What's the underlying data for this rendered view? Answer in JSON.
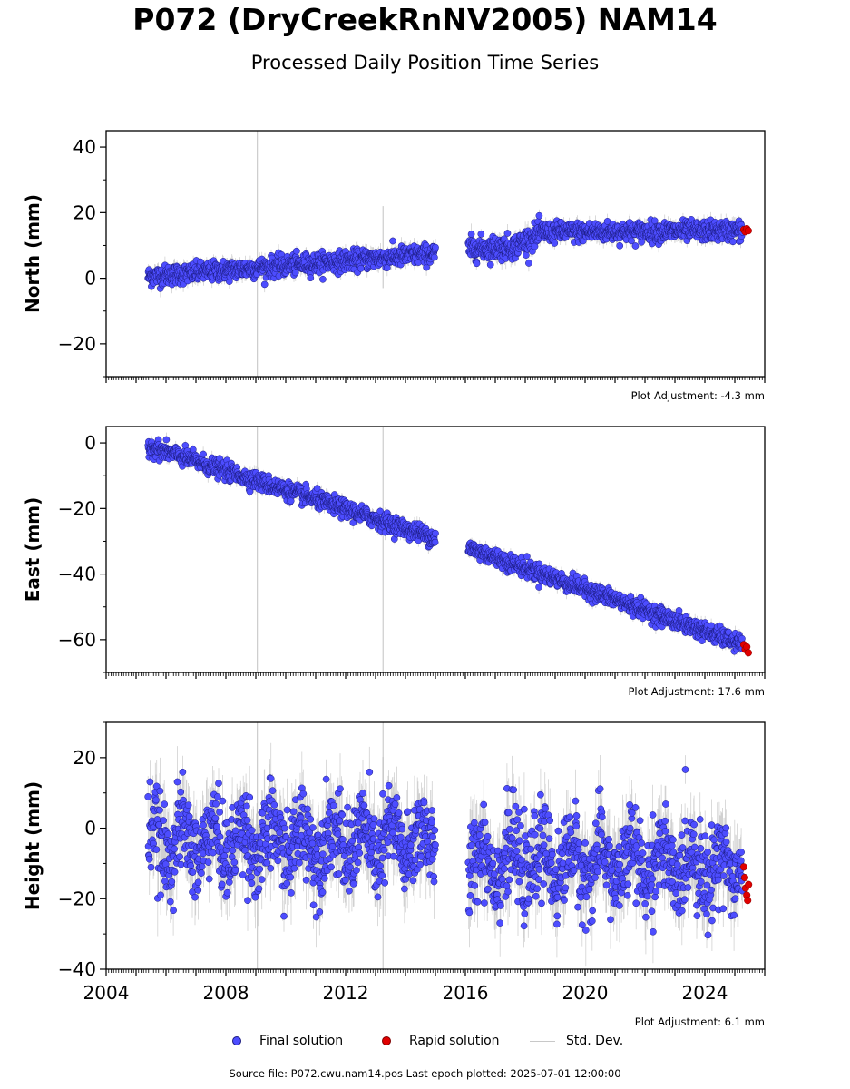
{
  "header": {
    "title": "P072 (DryCreekRnNV2005) NAM14",
    "subtitle": "Processed Daily Position Time Series"
  },
  "legend": {
    "final_label": "Final solution",
    "rapid_label": "Rapid solution",
    "std_label": "Std. Dev."
  },
  "footer": {
    "source": "Source file: P072.cwu.nam14.pos  Last epoch plotted: 2025-07-01 12:00:00"
  },
  "colors": {
    "final_fill": "#4d4dff",
    "final_edge": "#1a1a80",
    "rapid_fill": "#e00000",
    "std_dev": "#c8c8c8"
  },
  "chart_data": [
    {
      "type": "scatter",
      "ylabel": "North (mm)",
      "ylim": [
        -30,
        45
      ],
      "yticks": [
        40,
        20,
        0,
        -20
      ],
      "ytick_labels": [
        "40",
        "20",
        "0",
        "−20"
      ],
      "xlim": [
        2004,
        2026
      ],
      "adjustment": "Plot Adjustment: -4.3 mm",
      "break_lines": [
        2009.05
      ],
      "outlier_spikes": [
        [
          2013.25,
          -3,
          22
        ]
      ],
      "segments": [
        {
          "x0": 2005.4,
          "x1": 2015.0,
          "y0": 0.5,
          "y1": 7.5,
          "noise": 1.5
        },
        {
          "x0": 2016.1,
          "x1": 2017.6,
          "y0": 9.0,
          "y1": 9.5,
          "noise": 1.8
        },
        {
          "x0": 2017.6,
          "x1": 2018.6,
          "y0": 9.5,
          "y1": 14.0,
          "noise": 1.8
        },
        {
          "x0": 2018.6,
          "x1": 2025.25,
          "y0": 14.0,
          "y1": 14.5,
          "noise": 1.5
        }
      ],
      "rapid": [
        [
          2025.3,
          14.8
        ],
        [
          2025.35,
          14.2
        ],
        [
          2025.4,
          15.1
        ],
        [
          2025.45,
          14.5
        ]
      ]
    },
    {
      "type": "scatter",
      "ylabel": "East (mm)",
      "ylim": [
        -70,
        5
      ],
      "yticks": [
        0,
        -20,
        -40,
        -60
      ],
      "ytick_labels": [
        "0",
        "−20",
        "−40",
        "−60"
      ],
      "xlim": [
        2004,
        2026
      ],
      "adjustment": "Plot Adjustment: 17.6 mm",
      "break_lines": [
        2009.05,
        2013.25
      ],
      "outlier_spikes": [],
      "segments": [
        {
          "x0": 2005.4,
          "x1": 2015.0,
          "y0": -1.0,
          "y1": -29.0,
          "noise": 1.3
        },
        {
          "x0": 2016.1,
          "x1": 2025.25,
          "y0": -32.0,
          "y1": -61.5,
          "noise": 1.3
        }
      ],
      "rapid": [
        [
          2025.3,
          -61.5
        ],
        [
          2025.35,
          -63.0
        ],
        [
          2025.4,
          -62.2
        ],
        [
          2025.45,
          -64.0
        ]
      ]
    },
    {
      "type": "scatter",
      "ylabel": "Height (mm)",
      "ylim": [
        -40,
        30
      ],
      "yticks": [
        20,
        0,
        -20,
        -40
      ],
      "ytick_labels": [
        "20",
        "0",
        "−20",
        "−40"
      ],
      "xlim": [
        2004,
        2026
      ],
      "xticks": [
        2004,
        2008,
        2012,
        2016,
        2020,
        2024
      ],
      "xtick_labels": [
        "2004",
        "2008",
        "2012",
        "2016",
        "2020",
        "2024"
      ],
      "adjustment": "Plot Adjustment: 6.1 mm",
      "break_lines": [
        2009.05,
        2013.25
      ],
      "outlier_spikes": [],
      "segments": [
        {
          "x0": 2005.4,
          "x1": 2015.0,
          "y0": -4.0,
          "y1": -4.0,
          "noise": 6.0,
          "seasonal": 5.0
        },
        {
          "x0": 2016.1,
          "x1": 2025.25,
          "y0": -9.0,
          "y1": -11.0,
          "noise": 6.0,
          "seasonal": 5.0
        }
      ],
      "rapid": [
        [
          2025.3,
          -11.0
        ],
        [
          2025.33,
          -14.0
        ],
        [
          2025.36,
          -17.0
        ],
        [
          2025.4,
          -19.0
        ],
        [
          2025.43,
          -20.5
        ],
        [
          2025.46,
          -16.0
        ]
      ]
    }
  ]
}
